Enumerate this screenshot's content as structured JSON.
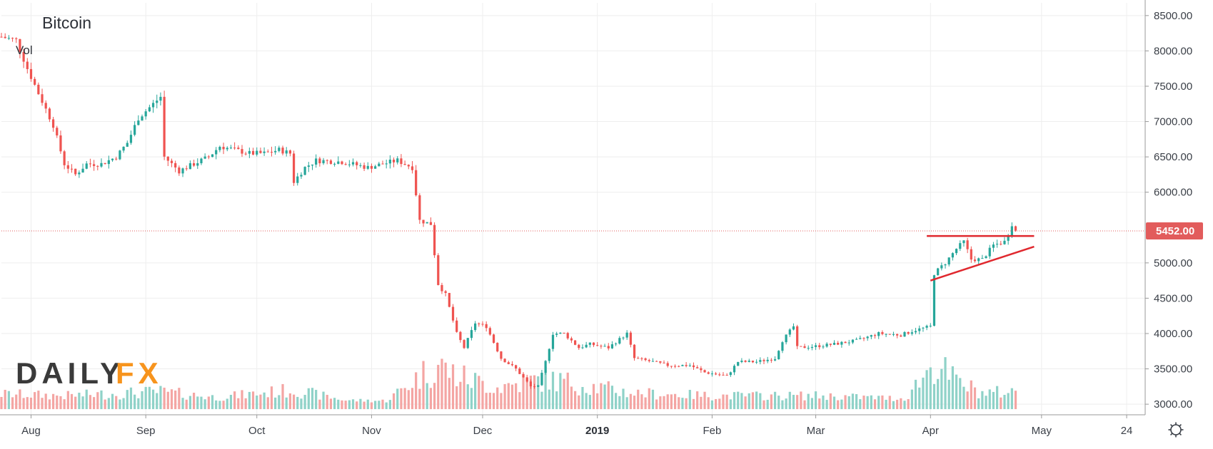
{
  "chart_title": "Bitcoin",
  "volume_label": "Vol",
  "logo": {
    "part1": "DAILY",
    "part2": "FX"
  },
  "colors": {
    "up": "#26a69a",
    "down": "#ef5350",
    "up_volume": "#8fd2c8",
    "down_volume": "#f4a5a3",
    "price_line": "#e25c5c",
    "trendline": "#e0282e",
    "grid": "#eeeeee",
    "axis": "#9a9a9a"
  },
  "chart_data": {
    "type": "candlestick",
    "title": "Bitcoin",
    "y_ticks": [
      "8500.00",
      "8000.00",
      "7500.00",
      "7000.00",
      "6500.00",
      "6000.00",
      "5000.00",
      "4500.00",
      "4000.00",
      "3500.00",
      "3000.00"
    ],
    "x_ticks": [
      {
        "label": "Aug",
        "date": "2018-08-01"
      },
      {
        "label": "Sep",
        "date": "2018-09-01"
      },
      {
        "label": "Oct",
        "date": "2018-10-01"
      },
      {
        "label": "Nov",
        "date": "2018-11-01"
      },
      {
        "label": "Dec",
        "date": "2018-12-01"
      },
      {
        "label": "2019",
        "date": "2019-01-01",
        "bold": true
      },
      {
        "label": "Feb",
        "date": "2019-02-01"
      },
      {
        "label": "Mar",
        "date": "2019-03-01"
      },
      {
        "label": "Apr",
        "date": "2019-04-01"
      },
      {
        "label": "May",
        "date": "2019-05-01"
      },
      {
        "label": "24",
        "date": "2019-05-24"
      }
    ],
    "x_range": [
      "2018-07-24",
      "2019-05-29"
    ],
    "y_range": [
      2850,
      8680
    ],
    "last_price": "5452.00",
    "last_price_value": 5452,
    "close_path": [
      [
        "2018-07-24",
        8200
      ],
      [
        "2018-07-28",
        8150
      ],
      [
        "2018-07-31",
        7750
      ],
      [
        "2018-08-03",
        7400
      ],
      [
        "2018-08-07",
        6950
      ],
      [
        "2018-08-10",
        6400
      ],
      [
        "2018-08-13",
        6250
      ],
      [
        "2018-08-16",
        6400
      ],
      [
        "2018-08-20",
        6400
      ],
      [
        "2018-08-24",
        6500
      ],
      [
        "2018-08-27",
        6700
      ],
      [
        "2018-08-30",
        7050
      ],
      [
        "2018-09-02",
        7200
      ],
      [
        "2018-09-05",
        7350
      ],
      [
        "2018-09-06",
        6500
      ],
      [
        "2018-09-10",
        6300
      ],
      [
        "2018-09-14",
        6400
      ],
      [
        "2018-09-18",
        6500
      ],
      [
        "2018-09-21",
        6650
      ],
      [
        "2018-09-25",
        6600
      ],
      [
        "2018-09-29",
        6550
      ],
      [
        "2018-10-03",
        6550
      ],
      [
        "2018-10-07",
        6600
      ],
      [
        "2018-10-10",
        6550
      ],
      [
        "2018-10-11",
        6150
      ],
      [
        "2018-10-14",
        6350
      ],
      [
        "2018-10-17",
        6450
      ],
      [
        "2018-10-24",
        6430
      ],
      [
        "2018-10-31",
        6350
      ],
      [
        "2018-11-04",
        6400
      ],
      [
        "2018-11-08",
        6450
      ],
      [
        "2018-11-12",
        6350
      ],
      [
        "2018-11-14",
        5600
      ],
      [
        "2018-11-17",
        5550
      ],
      [
        "2018-11-19",
        4700
      ],
      [
        "2018-11-21",
        4550
      ],
      [
        "2018-11-24",
        4000
      ],
      [
        "2018-11-26",
        3800
      ],
      [
        "2018-11-29",
        4150
      ],
      [
        "2018-12-02",
        4100
      ],
      [
        "2018-12-06",
        3650
      ],
      [
        "2018-12-10",
        3500
      ],
      [
        "2018-12-14",
        3250
      ],
      [
        "2018-12-16",
        3250
      ],
      [
        "2018-12-18",
        3600
      ],
      [
        "2018-12-20",
        4000
      ],
      [
        "2018-12-23",
        4000
      ],
      [
        "2018-12-27",
        3800
      ],
      [
        "2018-12-30",
        3850
      ],
      [
        "2019-01-04",
        3800
      ],
      [
        "2019-01-09",
        4000
      ],
      [
        "2019-01-11",
        3650
      ],
      [
        "2019-01-16",
        3600
      ],
      [
        "2019-01-20",
        3550
      ],
      [
        "2019-01-26",
        3550
      ],
      [
        "2019-01-30",
        3450
      ],
      [
        "2019-02-05",
        3400
      ],
      [
        "2019-02-08",
        3600
      ],
      [
        "2019-02-13",
        3600
      ],
      [
        "2019-02-18",
        3650
      ],
      [
        "2019-02-20",
        3900
      ],
      [
        "2019-02-23",
        4100
      ],
      [
        "2019-02-24",
        3800
      ],
      [
        "2019-03-01",
        3820
      ],
      [
        "2019-03-06",
        3850
      ],
      [
        "2019-03-12",
        3900
      ],
      [
        "2019-03-18",
        4000
      ],
      [
        "2019-03-24",
        3980
      ],
      [
        "2019-03-28",
        4050
      ],
      [
        "2019-04-01",
        4100
      ],
      [
        "2019-04-02",
        4850
      ],
      [
        "2019-04-05",
        5000
      ],
      [
        "2019-04-08",
        5200
      ],
      [
        "2019-04-10",
        5300
      ],
      [
        "2019-04-12",
        5050
      ],
      [
        "2019-04-15",
        5050
      ],
      [
        "2019-04-18",
        5250
      ],
      [
        "2019-04-21",
        5300
      ],
      [
        "2019-04-22",
        5400
      ],
      [
        "2019-04-23",
        5550
      ],
      [
        "2019-04-24",
        5452
      ]
    ],
    "volume_path": [
      [
        "2018-07-24",
        3180
      ],
      [
        "2018-08-10",
        3150
      ],
      [
        "2018-09-05",
        3220
      ],
      [
        "2018-09-20",
        3120
      ],
      [
        "2018-10-11",
        3250
      ],
      [
        "2018-10-25",
        3070
      ],
      [
        "2018-11-05",
        3060
      ],
      [
        "2018-11-14",
        3500
      ],
      [
        "2018-11-19",
        3700
      ],
      [
        "2018-11-24",
        3500
      ],
      [
        "2018-12-05",
        3300
      ],
      [
        "2018-12-18",
        3450
      ],
      [
        "2019-01-10",
        3200
      ],
      [
        "2019-02-01",
        3150
      ],
      [
        "2019-03-01",
        3150
      ],
      [
        "2019-03-25",
        3100
      ],
      [
        "2019-04-02",
        3720
      ],
      [
        "2019-04-08",
        3400
      ],
      [
        "2019-04-15",
        3200
      ],
      [
        "2019-04-24",
        3220
      ]
    ],
    "annotations": [
      {
        "type": "horizontal-resistance",
        "x1": "2019-03-31",
        "x2": "2019-04-29",
        "y": 5380
      },
      {
        "type": "rising-support",
        "x1": "2019-04-01",
        "y1": 4750,
        "x2": "2019-04-29",
        "y2": 5230
      }
    ]
  }
}
